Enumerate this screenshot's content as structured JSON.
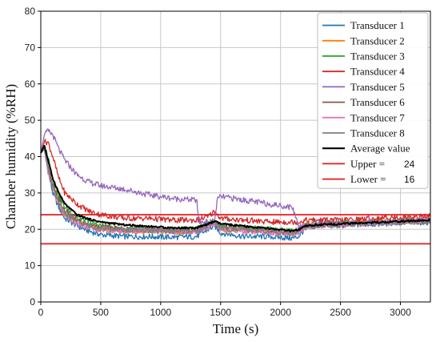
{
  "chart_data": {
    "type": "line",
    "title": "",
    "xlabel": "Time (s)",
    "ylabel": "Chamber humidity (%RH)",
    "xlim": [
      0,
      3250
    ],
    "ylim": [
      0,
      80
    ],
    "xticks": [
      0,
      500,
      1000,
      1500,
      2000,
      2500,
      3000
    ],
    "yticks": [
      0,
      10,
      20,
      30,
      40,
      50,
      60,
      70,
      80
    ],
    "grid": true,
    "legend_position": "top-right",
    "series": [
      {
        "name": "Transducer 1",
        "color": "#1f77b4",
        "x": [
          0,
          30,
          60,
          100,
          150,
          200,
          300,
          400,
          500,
          700,
          900,
          1100,
          1300,
          1400,
          1450,
          1500,
          1700,
          1900,
          2100,
          2150,
          2200,
          2300,
          2500,
          2800,
          3000,
          3250
        ],
        "y": [
          41,
          42,
          36,
          30,
          26,
          23,
          21,
          19.5,
          18.5,
          18,
          18,
          17.8,
          18,
          20,
          21,
          19,
          18,
          18,
          17.5,
          18,
          20,
          21,
          21,
          21.5,
          21.8,
          22
        ]
      },
      {
        "name": "Transducer 2",
        "color": "#ff7f0e",
        "x": [
          0,
          30,
          60,
          100,
          150,
          200,
          300,
          400,
          500,
          700,
          900,
          1100,
          1300,
          1400,
          1450,
          1500,
          1700,
          1900,
          2100,
          2150,
          2200,
          2300,
          2500,
          2800,
          3000,
          3250
        ],
        "y": [
          41,
          42,
          37,
          31,
          27,
          24,
          22,
          21,
          20,
          19.5,
          19.5,
          19.3,
          19.5,
          21,
          22,
          20,
          19.5,
          19.5,
          19,
          19.5,
          21,
          21.5,
          21.5,
          22,
          22.3,
          22.5
        ]
      },
      {
        "name": "Transducer 3",
        "color": "#2ca02c",
        "x": [
          0,
          30,
          60,
          100,
          150,
          200,
          300,
          400,
          500,
          700,
          900,
          1100,
          1300,
          1400,
          1450,
          1500,
          1700,
          1900,
          2100,
          2150,
          2200,
          2300,
          2500,
          2800,
          3000,
          3250
        ],
        "y": [
          41,
          43,
          40,
          34,
          29,
          26,
          23.5,
          22,
          21,
          20,
          20,
          19.8,
          20,
          21.5,
          22.5,
          21,
          20.5,
          20,
          19.5,
          20,
          21,
          21.5,
          21.8,
          22,
          22.3,
          22.6
        ]
      },
      {
        "name": "Transducer 4",
        "color": "#d62728",
        "x": [
          0,
          30,
          60,
          100,
          150,
          200,
          300,
          400,
          500,
          700,
          900,
          1100,
          1300,
          1400,
          1450,
          1500,
          1700,
          1900,
          2100,
          2150,
          2200,
          2300,
          2500,
          2800,
          3000,
          3250
        ],
        "y": [
          41,
          44,
          44,
          40,
          34,
          30,
          27,
          25,
          24,
          23,
          23,
          22.5,
          22.5,
          23.5,
          25,
          23,
          22.5,
          22,
          22,
          22,
          22.5,
          22.5,
          22.5,
          23,
          23.3,
          23.6
        ]
      },
      {
        "name": "Transducer 5",
        "color": "#9467bd",
        "x": [
          0,
          30,
          60,
          100,
          150,
          200,
          300,
          400,
          500,
          700,
          900,
          1100,
          1300,
          1320,
          1450,
          1470,
          1500,
          1700,
          1900,
          2100,
          2150,
          2200,
          2300,
          2500,
          2800,
          3000,
          3250
        ],
        "y": [
          41,
          46,
          47,
          46,
          42,
          39,
          35,
          33,
          32,
          31,
          29.5,
          28.5,
          28,
          22,
          22,
          28,
          29,
          28,
          27,
          26,
          21,
          21,
          21.5,
          21.5,
          22,
          22.3,
          22.5
        ]
      },
      {
        "name": "Transducer 6",
        "color": "#8c564b",
        "x": [
          0,
          30,
          60,
          100,
          150,
          200,
          300,
          400,
          500,
          700,
          900,
          1100,
          1300,
          1400,
          1450,
          1500,
          1700,
          1900,
          2100,
          2150,
          2200,
          2300,
          2500,
          2800,
          3000,
          3250
        ],
        "y": [
          41,
          42,
          37,
          32,
          28,
          25,
          22.5,
          21,
          20.5,
          20,
          19.8,
          19.5,
          19.5,
          21,
          22,
          20.5,
          20,
          19.5,
          19,
          19.5,
          20.5,
          21,
          21.3,
          21.8,
          22,
          22.3
        ]
      },
      {
        "name": "Transducer 7",
        "color": "#e377c2",
        "x": [
          0,
          30,
          60,
          100,
          150,
          200,
          300,
          400,
          500,
          700,
          900,
          1100,
          1300,
          1400,
          1450,
          1500,
          1700,
          1900,
          2100,
          2150,
          2200,
          2300,
          2500,
          2800,
          3000,
          3250
        ],
        "y": [
          41,
          42,
          36,
          31,
          27,
          24,
          21.5,
          20.5,
          20,
          19.5,
          19.5,
          19.2,
          19.3,
          20.5,
          21.5,
          20,
          19.5,
          19,
          18.5,
          19,
          20.5,
          21,
          21.3,
          21.8,
          22,
          22.3
        ]
      },
      {
        "name": "Transducer 8",
        "color": "#7f7f7f",
        "x": [
          0,
          30,
          60,
          100,
          150,
          200,
          300,
          400,
          500,
          700,
          900,
          1100,
          1300,
          1400,
          1450,
          1500,
          1700,
          1900,
          2100,
          2150,
          2200,
          2300,
          2500,
          2800,
          3000,
          3250
        ],
        "y": [
          41,
          42,
          37,
          31,
          27,
          24.5,
          22,
          21,
          20.3,
          19.8,
          19.8,
          19.5,
          19.6,
          21,
          22,
          20.3,
          19.8,
          19.4,
          19,
          19.4,
          20.5,
          21,
          21.3,
          21.8,
          22,
          22.3
        ]
      },
      {
        "name": "Average value",
        "color": "#000000",
        "x": [
          0,
          30,
          60,
          100,
          150,
          200,
          300,
          400,
          500,
          700,
          900,
          1100,
          1300,
          1400,
          1450,
          1500,
          1700,
          1900,
          2100,
          2150,
          2200,
          2300,
          2500,
          2800,
          3000,
          3250
        ],
        "y": [
          41,
          43,
          39,
          34,
          30,
          27,
          24,
          22.8,
          22,
          21.2,
          20.8,
          20.4,
          20.4,
          21.5,
          22.2,
          21.5,
          20.8,
          20.2,
          19.5,
          19.8,
          20.8,
          21.2,
          21.5,
          21.9,
          22.2,
          22.5
        ]
      }
    ],
    "reference_lines": [
      {
        "name": "Upper",
        "value": 24,
        "color": "#e31a1c"
      },
      {
        "name": "Lower",
        "value": 16,
        "color": "#e31a1c"
      }
    ]
  }
}
